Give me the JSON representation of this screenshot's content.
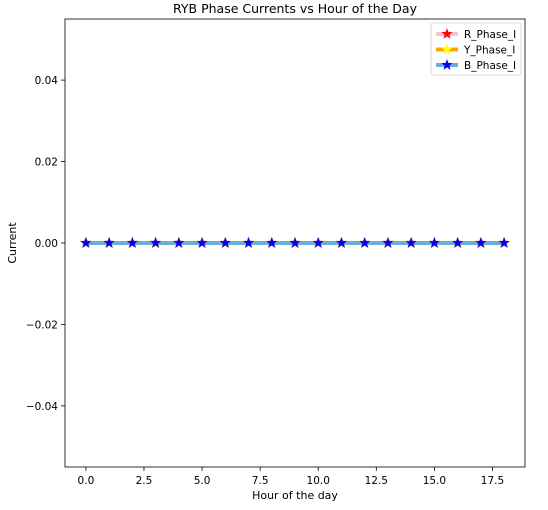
{
  "chart_data": {
    "type": "line",
    "title": "RYB Phase Currents vs Hour of the Day",
    "xlabel": "Hour of the day",
    "ylabel": "Current",
    "xlim": [
      -0.9,
      18.9
    ],
    "ylim": [
      -0.055,
      0.055
    ],
    "x_ticks": [
      0.0,
      2.5,
      5.0,
      7.5,
      10.0,
      12.5,
      15.0,
      17.5
    ],
    "x_tick_labels": [
      "0.0",
      "2.5",
      "5.0",
      "7.5",
      "10.0",
      "12.5",
      "15.0",
      "17.5"
    ],
    "y_ticks": [
      -0.04,
      -0.02,
      0.0,
      0.02,
      0.04
    ],
    "y_tick_labels": [
      "−0.04",
      "−0.02",
      "0.00",
      "0.02",
      "0.04"
    ],
    "grid": false,
    "legend_position": "top-right",
    "x": [
      0,
      1,
      2,
      3,
      4,
      5,
      6,
      7,
      8,
      9,
      10,
      11,
      12,
      13,
      14,
      15,
      16,
      17,
      18
    ],
    "series": [
      {
        "name": "R_Phase_I",
        "values": [
          0,
          0,
          0,
          0,
          0,
          0,
          0,
          0,
          0,
          0,
          0,
          0,
          0,
          0,
          0,
          0,
          0,
          0,
          0
        ],
        "line_color": "#ffc0cb",
        "marker": "star",
        "marker_color": "#ff0000"
      },
      {
        "name": "Y_Phase_I",
        "values": [
          0,
          0,
          0,
          0,
          0,
          0,
          0,
          0,
          0,
          0,
          0,
          0,
          0,
          0,
          0,
          0,
          0,
          0,
          0
        ],
        "line_color": "#ffa500",
        "marker": "star",
        "marker_color": "#ffff00"
      },
      {
        "name": "B_Phase_I",
        "values": [
          0,
          0,
          0,
          0,
          0,
          0,
          0,
          0,
          0,
          0,
          0,
          0,
          0,
          0,
          0,
          0,
          0,
          0,
          0
        ],
        "line_color": "#6baed6",
        "marker": "star",
        "marker_color": "#0000ff"
      }
    ]
  }
}
